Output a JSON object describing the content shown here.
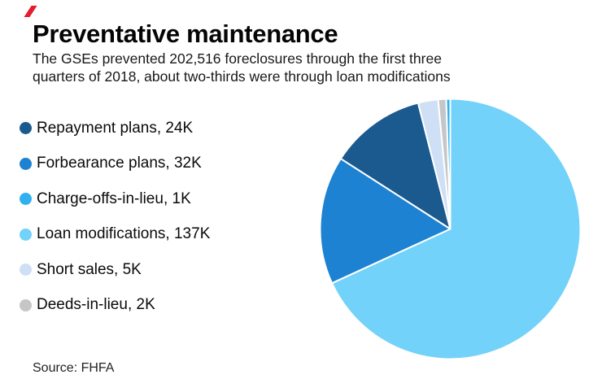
{
  "brand": {
    "accent_color": "#e51c30"
  },
  "header": {
    "title": "Preventative maintenance",
    "subtitle_line1": "The GSEs prevented 202,516 foreclosures through the first three",
    "subtitle_line2": "quarters of 2018, about two-thirds were through loan modifications"
  },
  "legend": {
    "items": [
      {
        "label": "Repayment plans, 24K",
        "color": "#1b5a8e"
      },
      {
        "label": "Forbearance plans, 32K",
        "color": "#1e82d2"
      },
      {
        "label": "Charge-offs-in-lieu, 1K",
        "color": "#2fb1f0"
      },
      {
        "label": "Loan modifications, 137K",
        "color": "#72d2f9"
      },
      {
        "label": "Short sales, 5K",
        "color": "#cfdff6"
      },
      {
        "label": "Deeds-in-lieu, 2K",
        "color": "#c4c6c8"
      }
    ]
  },
  "source": {
    "text": "Source: FHFA"
  },
  "chart_data": {
    "type": "pie",
    "title": "Preventative maintenance",
    "subtitle": "The GSEs prevented 202,516 foreclosures through the first three quarters of 2018, about two-thirds were through loan modifications",
    "value_unit": "K (thousands of foreclosures prevented)",
    "slices": [
      {
        "name": "Repayment plans",
        "value": 24,
        "display": "24K",
        "color": "#1b5a8e"
      },
      {
        "name": "Forbearance plans",
        "value": 32,
        "display": "32K",
        "color": "#1e82d2"
      },
      {
        "name": "Charge-offs-in-lieu",
        "value": 1,
        "display": "1K",
        "color": "#2fb1f0"
      },
      {
        "name": "Loan modifications",
        "value": 137,
        "display": "137K",
        "color": "#72d2f9"
      },
      {
        "name": "Short sales",
        "value": 5,
        "display": "5K",
        "color": "#cfdff6"
      },
      {
        "name": "Deeds-in-lieu",
        "value": 2,
        "display": "2K",
        "color": "#c4c6c8"
      }
    ],
    "pie_order": [
      "Loan modifications",
      "Forbearance plans",
      "Repayment plans",
      "Short sales",
      "Deeds-in-lieu",
      "Charge-offs-in-lieu"
    ],
    "rotation": "clockwise",
    "start_angle_deg_from_top": 0,
    "separator": {
      "color": "#ffffff",
      "width": 2
    },
    "legend_position": "left",
    "data_labels": "none"
  }
}
